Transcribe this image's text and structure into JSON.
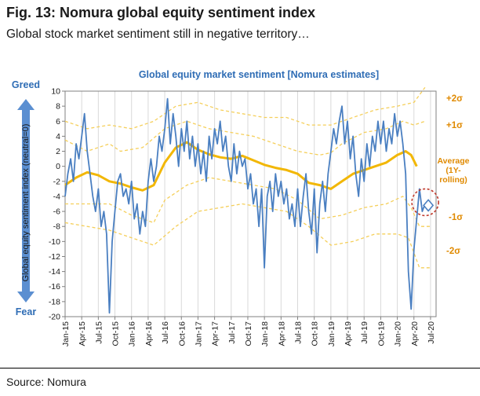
{
  "figure": {
    "title": "Fig. 13: Nomura global equity sentiment index",
    "subtitle": "Global stock market sentiment still in negative territory…",
    "source": "Source: Nomura"
  },
  "colors": {
    "series": "#4a7fc1",
    "average": "#f2b705",
    "bands": "#f5cf5a",
    "band_labels": "#e08a00",
    "title_blue": "#2f6db5",
    "axis_arrow": "#5b8fd1",
    "marker_circle": "#c0392b"
  },
  "chart_data": {
    "type": "line",
    "title": "Global equity market sentiment [Nomura estimates]",
    "ylabel": "Global equity sentiment index (neutral=0)",
    "y_top_label": "Greed",
    "y_bottom_label": "Fear",
    "ylim": [
      -20,
      10
    ],
    "yticks": [
      10,
      8,
      6,
      4,
      2,
      0,
      -2,
      -4,
      -6,
      -8,
      -10,
      -12,
      -14,
      -16,
      -18,
      -20
    ],
    "xlim": [
      0,
      67
    ],
    "xtick_labels": [
      "Jan-15",
      "Apr-15",
      "Jul-15",
      "Oct-15",
      "Jan-16",
      "Apr-16",
      "Jul-16",
      "Oct-16",
      "Jan-17",
      "Apr-17",
      "Jul-17",
      "Oct-17",
      "Jan-18",
      "Apr-18",
      "Jul-18",
      "Oct-18",
      "Jan-19",
      "Apr-19",
      "Jul-19",
      "Oct-19",
      "Jan-20",
      "Apr-20",
      "Jul-20"
    ],
    "xtick_positions": [
      0,
      3,
      6,
      9,
      12,
      15,
      18,
      21,
      24,
      27,
      30,
      33,
      36,
      39,
      42,
      45,
      48,
      51,
      54,
      57,
      60,
      63,
      66
    ],
    "band_labels": {
      "plus2": "+2σ",
      "plus1": "+1σ",
      "average": "Average (1Y-rolling)",
      "minus1": "-1σ",
      "minus2": "-2σ"
    },
    "average": [
      [
        0,
        -2.5
      ],
      [
        2,
        -1.5
      ],
      [
        4,
        -0.8
      ],
      [
        6,
        -1.2
      ],
      [
        8,
        -2.0
      ],
      [
        10,
        -2.3
      ],
      [
        12,
        -2.8
      ],
      [
        14,
        -3.2
      ],
      [
        16,
        -2.5
      ],
      [
        18,
        0.5
      ],
      [
        20,
        2.5
      ],
      [
        22,
        3.2
      ],
      [
        24,
        2.2
      ],
      [
        26,
        1.6
      ],
      [
        28,
        1.2
      ],
      [
        30,
        1.0
      ],
      [
        32,
        1.4
      ],
      [
        34,
        0.8
      ],
      [
        36,
        0.2
      ],
      [
        38,
        -0.2
      ],
      [
        40,
        -0.5
      ],
      [
        42,
        -1.0
      ],
      [
        44,
        -2.2
      ],
      [
        46,
        -2.5
      ],
      [
        48,
        -3.0
      ],
      [
        50,
        -2.0
      ],
      [
        52,
        -1.0
      ],
      [
        54,
        -0.5
      ],
      [
        56,
        0.0
      ],
      [
        58,
        0.5
      ],
      [
        60,
        1.5
      ],
      [
        61.5,
        2.0
      ],
      [
        62.5,
        1.5
      ],
      [
        63.5,
        0.0
      ]
    ],
    "plus1": [
      [
        0,
        3.5
      ],
      [
        4,
        2.0
      ],
      [
        8,
        3.0
      ],
      [
        10,
        2.0
      ],
      [
        14,
        2.5
      ],
      [
        18,
        5.0
      ],
      [
        22,
        6.0
      ],
      [
        26,
        5.0
      ],
      [
        30,
        4.5
      ],
      [
        34,
        4.0
      ],
      [
        38,
        3.0
      ],
      [
        42,
        2.0
      ],
      [
        46,
        1.5
      ],
      [
        48,
        1.8
      ],
      [
        50,
        3.0
      ],
      [
        54,
        4.5
      ],
      [
        58,
        5.0
      ],
      [
        61,
        6.0
      ],
      [
        63,
        5.5
      ],
      [
        65,
        6.0
      ]
    ],
    "plus2": [
      [
        0,
        6.0
      ],
      [
        4,
        5.0
      ],
      [
        8,
        5.5
      ],
      [
        12,
        5.0
      ],
      [
        16,
        6.0
      ],
      [
        20,
        8.0
      ],
      [
        24,
        8.5
      ],
      [
        28,
        7.5
      ],
      [
        32,
        7.0
      ],
      [
        36,
        6.5
      ],
      [
        40,
        6.5
      ],
      [
        44,
        5.5
      ],
      [
        48,
        5.5
      ],
      [
        52,
        6.5
      ],
      [
        56,
        7.5
      ],
      [
        60,
        8.0
      ],
      [
        63,
        8.5
      ],
      [
        65,
        10.5
      ]
    ],
    "minus1": [
      [
        0,
        -5.0
      ],
      [
        4,
        -5.0
      ],
      [
        8,
        -5.0
      ],
      [
        12,
        -6.5
      ],
      [
        16,
        -7.5
      ],
      [
        18,
        -4.5
      ],
      [
        22,
        -2.5
      ],
      [
        26,
        -1.5
      ],
      [
        30,
        -2.0
      ],
      [
        34,
        -2.5
      ],
      [
        38,
        -3.0
      ],
      [
        42,
        -4.5
      ],
      [
        46,
        -7.0
      ],
      [
        50,
        -6.5
      ],
      [
        54,
        -5.5
      ],
      [
        58,
        -5.0
      ],
      [
        61,
        -4.0
      ],
      [
        62.5,
        -5.5
      ],
      [
        64,
        -8.0
      ],
      [
        66,
        -8.0
      ]
    ],
    "minus2": [
      [
        0,
        -7.5
      ],
      [
        4,
        -8.0
      ],
      [
        8,
        -8.5
      ],
      [
        12,
        -9.5
      ],
      [
        16,
        -10.5
      ],
      [
        20,
        -8.0
      ],
      [
        24,
        -6.0
      ],
      [
        28,
        -5.5
      ],
      [
        32,
        -5.0
      ],
      [
        36,
        -5.5
      ],
      [
        40,
        -6.0
      ],
      [
        44,
        -8.0
      ],
      [
        48,
        -10.5
      ],
      [
        52,
        -10.0
      ],
      [
        56,
        -9.0
      ],
      [
        60,
        -9.0
      ],
      [
        62,
        -9.5
      ],
      [
        64,
        -13.5
      ],
      [
        66,
        -13.5
      ]
    ],
    "series": [
      [
        0,
        -4
      ],
      [
        0.5,
        -1
      ],
      [
        1,
        1
      ],
      [
        1.5,
        -2
      ],
      [
        2,
        3
      ],
      [
        2.5,
        1
      ],
      [
        3,
        4
      ],
      [
        3.5,
        7
      ],
      [
        4,
        2
      ],
      [
        4.5,
        -1
      ],
      [
        5,
        -4
      ],
      [
        5.5,
        -6
      ],
      [
        6,
        -3
      ],
      [
        6.5,
        -8
      ],
      [
        7,
        -6
      ],
      [
        7.5,
        -9
      ],
      [
        8,
        -19.5
      ],
      [
        8.5,
        -10
      ],
      [
        9,
        -6
      ],
      [
        9.5,
        -2
      ],
      [
        10,
        -1
      ],
      [
        10.5,
        -4
      ],
      [
        11,
        -3
      ],
      [
        11.5,
        -5
      ],
      [
        12,
        -2
      ],
      [
        12.5,
        -7
      ],
      [
        13,
        -5
      ],
      [
        13.5,
        -9
      ],
      [
        14,
        -6
      ],
      [
        14.5,
        -8
      ],
      [
        15,
        -2
      ],
      [
        15.5,
        1
      ],
      [
        16,
        -2
      ],
      [
        16.5,
        0
      ],
      [
        17,
        4
      ],
      [
        17.5,
        2
      ],
      [
        18,
        5
      ],
      [
        18.5,
        9
      ],
      [
        19,
        3
      ],
      [
        19.5,
        7
      ],
      [
        20,
        4
      ],
      [
        20.5,
        0
      ],
      [
        21,
        5
      ],
      [
        21.5,
        2
      ],
      [
        22,
        6
      ],
      [
        22.5,
        1
      ],
      [
        23,
        4
      ],
      [
        23.5,
        0
      ],
      [
        24,
        3
      ],
      [
        24.5,
        -1
      ],
      [
        25,
        2
      ],
      [
        25.5,
        -2
      ],
      [
        26,
        4
      ],
      [
        26.5,
        1
      ],
      [
        27,
        5
      ],
      [
        27.5,
        3
      ],
      [
        28,
        6
      ],
      [
        28.5,
        2
      ],
      [
        29,
        4
      ],
      [
        29.5,
        0
      ],
      [
        30,
        -2
      ],
      [
        30.5,
        3
      ],
      [
        31,
        -1
      ],
      [
        31.5,
        2
      ],
      [
        32,
        0
      ],
      [
        32.5,
        1
      ],
      [
        33,
        -3
      ],
      [
        33.5,
        -1
      ],
      [
        34,
        -5
      ],
      [
        34.5,
        -3
      ],
      [
        35,
        -8
      ],
      [
        35.5,
        -3
      ],
      [
        36,
        -13.5
      ],
      [
        36.5,
        -4
      ],
      [
        37,
        -2
      ],
      [
        37.5,
        -6
      ],
      [
        38,
        -1
      ],
      [
        38.5,
        -4
      ],
      [
        39,
        -2
      ],
      [
        39.5,
        -5
      ],
      [
        40,
        -3
      ],
      [
        40.5,
        -7
      ],
      [
        41,
        -5
      ],
      [
        41.5,
        -8
      ],
      [
        42,
        -3
      ],
      [
        42.5,
        -8
      ],
      [
        43,
        -4
      ],
      [
        43.5,
        -1
      ],
      [
        44,
        -6
      ],
      [
        44.5,
        -9
      ],
      [
        45,
        -3
      ],
      [
        45.5,
        -11.5
      ],
      [
        46,
        -5
      ],
      [
        46.5,
        -2
      ],
      [
        47,
        -6
      ],
      [
        47.5,
        -1
      ],
      [
        48,
        2
      ],
      [
        48.5,
        5
      ],
      [
        49,
        3
      ],
      [
        49.5,
        6
      ],
      [
        50,
        8
      ],
      [
        50.5,
        3
      ],
      [
        51,
        6
      ],
      [
        51.5,
        1
      ],
      [
        52,
        4
      ],
      [
        52.5,
        -1
      ],
      [
        53,
        -4
      ],
      [
        53.5,
        1
      ],
      [
        54,
        -2
      ],
      [
        54.5,
        3
      ],
      [
        55,
        0
      ],
      [
        55.5,
        4
      ],
      [
        56,
        2
      ],
      [
        56.5,
        6
      ],
      [
        57,
        3
      ],
      [
        57.5,
        6
      ],
      [
        58,
        2
      ],
      [
        58.5,
        5
      ],
      [
        59,
        3
      ],
      [
        59.5,
        7
      ],
      [
        60,
        4
      ],
      [
        60.5,
        6
      ],
      [
        61,
        3
      ],
      [
        61.5,
        -1
      ],
      [
        62,
        -14
      ],
      [
        62.5,
        -19
      ],
      [
        63,
        -11
      ],
      [
        63.5,
        -7
      ],
      [
        64,
        -3
      ],
      [
        64.5,
        -6
      ],
      [
        65,
        -5
      ]
    ],
    "marker": [
      65.6,
      -5.2
    ]
  }
}
